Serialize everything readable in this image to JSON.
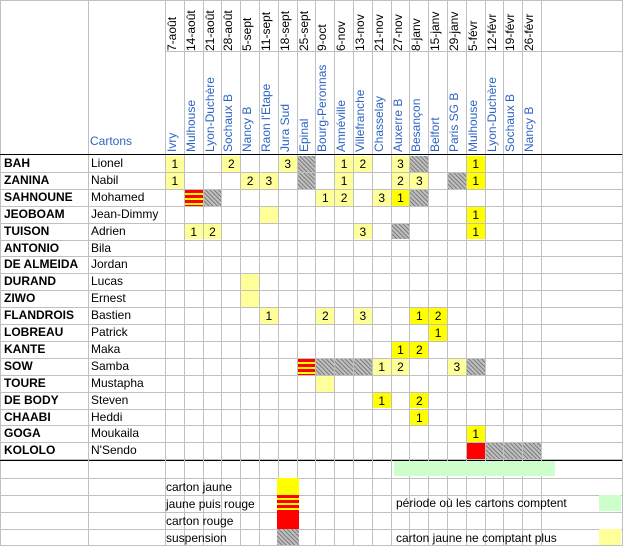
{
  "header": {
    "cartons_label": "Cartons"
  },
  "dates": [
    "7-août",
    "14-août",
    "21-août",
    "28-août",
    "5-sept",
    "11-sept",
    "18-sept",
    "25-sept",
    "9-oct",
    "6-nov",
    "13-nov",
    "21-nov",
    "27-nov",
    "8-janv",
    "15-janv",
    "29-janv",
    "5-févr",
    "12-févr",
    "19-févr",
    "26-févr"
  ],
  "opponents": [
    "Ivry",
    "Mulhouse",
    "Lyon-Duchère",
    "Sochaux B",
    "Nancy B",
    "Raon l'Etape",
    "Jura Sud",
    "Epinal",
    "Bourg-Peronnas",
    "Amnéville",
    "Villefranche",
    "Chasselay",
    "Auxerre B",
    "Besançon",
    "Belfort",
    "Paris SG B",
    "Mulhouse",
    "Lyon-Duchère",
    "Sochaux B",
    "Nancy B"
  ],
  "players": [
    {
      "surname": "BAH",
      "firstname": "Lionel"
    },
    {
      "surname": "ZANINA",
      "firstname": "Nabil"
    },
    {
      "surname": "SAHNOUNE",
      "firstname": "Mohamed"
    },
    {
      "surname": "JEOBOAM",
      "firstname": "Jean-Dimmy"
    },
    {
      "surname": "TUISON",
      "firstname": "Adrien"
    },
    {
      "surname": "ANTONIO",
      "firstname": "Bila"
    },
    {
      "surname": "DE ALMEIDA",
      "firstname": "Jordan"
    },
    {
      "surname": "DURAND",
      "firstname": "Lucas"
    },
    {
      "surname": "ZIWO",
      "firstname": "Ernest"
    },
    {
      "surname": "FLANDROIS",
      "firstname": "Bastien"
    },
    {
      "surname": "LOBREAU",
      "firstname": "Patrick"
    },
    {
      "surname": "KANTE",
      "firstname": "Maka"
    },
    {
      "surname": "SOW",
      "firstname": "Samba"
    },
    {
      "surname": "TOURE",
      "firstname": "Mustapha"
    },
    {
      "surname": "DE BODY",
      "firstname": "Steven"
    },
    {
      "surname": "CHAABI",
      "firstname": "Heddi"
    },
    {
      "surname": "GOGA",
      "firstname": "Moukaila"
    },
    {
      "surname": "KOLOLO",
      "firstname": "N'Sendo"
    }
  ],
  "marks": [
    {
      "row": 0,
      "col": 0,
      "type": "yellow",
      "count": "1"
    },
    {
      "row": 0,
      "col": 3,
      "type": "yellow",
      "count": "2"
    },
    {
      "row": 0,
      "col": 6,
      "type": "yellow",
      "count": "3"
    },
    {
      "row": 0,
      "col": 7,
      "type": "suspension",
      "count": ""
    },
    {
      "row": 0,
      "col": 9,
      "type": "yellow",
      "count": "1"
    },
    {
      "row": 0,
      "col": 10,
      "type": "yellow",
      "count": "2"
    },
    {
      "row": 0,
      "col": 12,
      "type": "yellow",
      "count": "3"
    },
    {
      "row": 0,
      "col": 13,
      "type": "suspension",
      "count": ""
    },
    {
      "row": 0,
      "col": 16,
      "type": "yellow-strong",
      "count": "1"
    },
    {
      "row": 1,
      "col": 0,
      "type": "yellow",
      "count": "1"
    },
    {
      "row": 1,
      "col": 4,
      "type": "yellow",
      "count": "2"
    },
    {
      "row": 1,
      "col": 5,
      "type": "yellow",
      "count": "3"
    },
    {
      "row": 1,
      "col": 7,
      "type": "suspension",
      "count": ""
    },
    {
      "row": 1,
      "col": 9,
      "type": "yellow",
      "count": "1"
    },
    {
      "row": 1,
      "col": 12,
      "type": "yellow",
      "count": "2"
    },
    {
      "row": 1,
      "col": 13,
      "type": "yellow",
      "count": "3"
    },
    {
      "row": 1,
      "col": 15,
      "type": "suspension",
      "count": ""
    },
    {
      "row": 1,
      "col": 16,
      "type": "yellow-strong",
      "count": "1"
    },
    {
      "row": 2,
      "col": 1,
      "type": "yellow-red",
      "count": ""
    },
    {
      "row": 2,
      "col": 2,
      "type": "suspension",
      "count": ""
    },
    {
      "row": 2,
      "col": 8,
      "type": "yellow",
      "count": "1"
    },
    {
      "row": 2,
      "col": 9,
      "type": "yellow",
      "count": "2"
    },
    {
      "row": 2,
      "col": 11,
      "type": "yellow",
      "count": "3"
    },
    {
      "row": 2,
      "col": 12,
      "type": "yellow-strong",
      "count": "1"
    },
    {
      "row": 2,
      "col": 13,
      "type": "suspension",
      "count": ""
    },
    {
      "row": 3,
      "col": 5,
      "type": "yellow",
      "count": ""
    },
    {
      "row": 3,
      "col": 16,
      "type": "yellow-strong",
      "count": "1"
    },
    {
      "row": 4,
      "col": 1,
      "type": "yellow",
      "count": "1"
    },
    {
      "row": 4,
      "col": 2,
      "type": "yellow",
      "count": "2"
    },
    {
      "row": 4,
      "col": 10,
      "type": "yellow",
      "count": "3"
    },
    {
      "row": 4,
      "col": 12,
      "type": "suspension",
      "count": ""
    },
    {
      "row": 4,
      "col": 16,
      "type": "yellow-strong",
      "count": "1"
    },
    {
      "row": 7,
      "col": 4,
      "type": "yellow",
      "count": ""
    },
    {
      "row": 8,
      "col": 4,
      "type": "yellow",
      "count": ""
    },
    {
      "row": 9,
      "col": 5,
      "type": "yellow",
      "count": "1"
    },
    {
      "row": 9,
      "col": 8,
      "type": "yellow",
      "count": "2"
    },
    {
      "row": 9,
      "col": 10,
      "type": "yellow",
      "count": "3"
    },
    {
      "row": 9,
      "col": 13,
      "type": "yellow-strong",
      "count": "1"
    },
    {
      "row": 9,
      "col": 14,
      "type": "yellow-strong",
      "count": "2"
    },
    {
      "row": 10,
      "col": 14,
      "type": "yellow-strong",
      "count": "1"
    },
    {
      "row": 11,
      "col": 12,
      "type": "yellow-strong",
      "count": "1"
    },
    {
      "row": 11,
      "col": 13,
      "type": "yellow-strong",
      "count": "2"
    },
    {
      "row": 12,
      "col": 7,
      "type": "yellow-red",
      "count": ""
    },
    {
      "row": 12,
      "col": 8,
      "type": "suspension",
      "count": ""
    },
    {
      "row": 12,
      "col": 9,
      "type": "suspension",
      "count": ""
    },
    {
      "row": 12,
      "col": 10,
      "type": "suspension",
      "count": ""
    },
    {
      "row": 12,
      "col": 11,
      "type": "yellow",
      "count": "1"
    },
    {
      "row": 12,
      "col": 12,
      "type": "yellow",
      "count": "2"
    },
    {
      "row": 12,
      "col": 15,
      "type": "yellow",
      "count": "3"
    },
    {
      "row": 12,
      "col": 16,
      "type": "suspension",
      "count": ""
    },
    {
      "row": 13,
      "col": 8,
      "type": "yellow",
      "count": ""
    },
    {
      "row": 14,
      "col": 11,
      "type": "yellow-strong",
      "count": "1"
    },
    {
      "row": 14,
      "col": 13,
      "type": "yellow-strong",
      "count": "2"
    },
    {
      "row": 15,
      "col": 13,
      "type": "yellow-strong",
      "count": "1"
    },
    {
      "row": 16,
      "col": 16,
      "type": "yellow-strong",
      "count": "1"
    },
    {
      "row": 17,
      "col": 16,
      "type": "red",
      "count": ""
    },
    {
      "row": 17,
      "col": 17,
      "type": "suspension",
      "count": ""
    },
    {
      "row": 17,
      "col": 18,
      "type": "suspension",
      "count": ""
    },
    {
      "row": 17,
      "col": 19,
      "type": "suspension",
      "count": ""
    }
  ],
  "legend": {
    "yellow_card": "carton jaune",
    "yellow_then_red": "jaune puis rouge",
    "red_card": "carton rouge",
    "suspension": "suspension",
    "period": "période où les cartons comptent",
    "yellow_no_count": "carton jaune ne comptant plus"
  },
  "colors": {
    "yellow": "#ffff99",
    "yellow_strong": "#ffff00",
    "red": "#ff0000",
    "period": "#ccffcc",
    "opponent_text": "#2e64c4",
    "grid": "#c0c0c0"
  }
}
